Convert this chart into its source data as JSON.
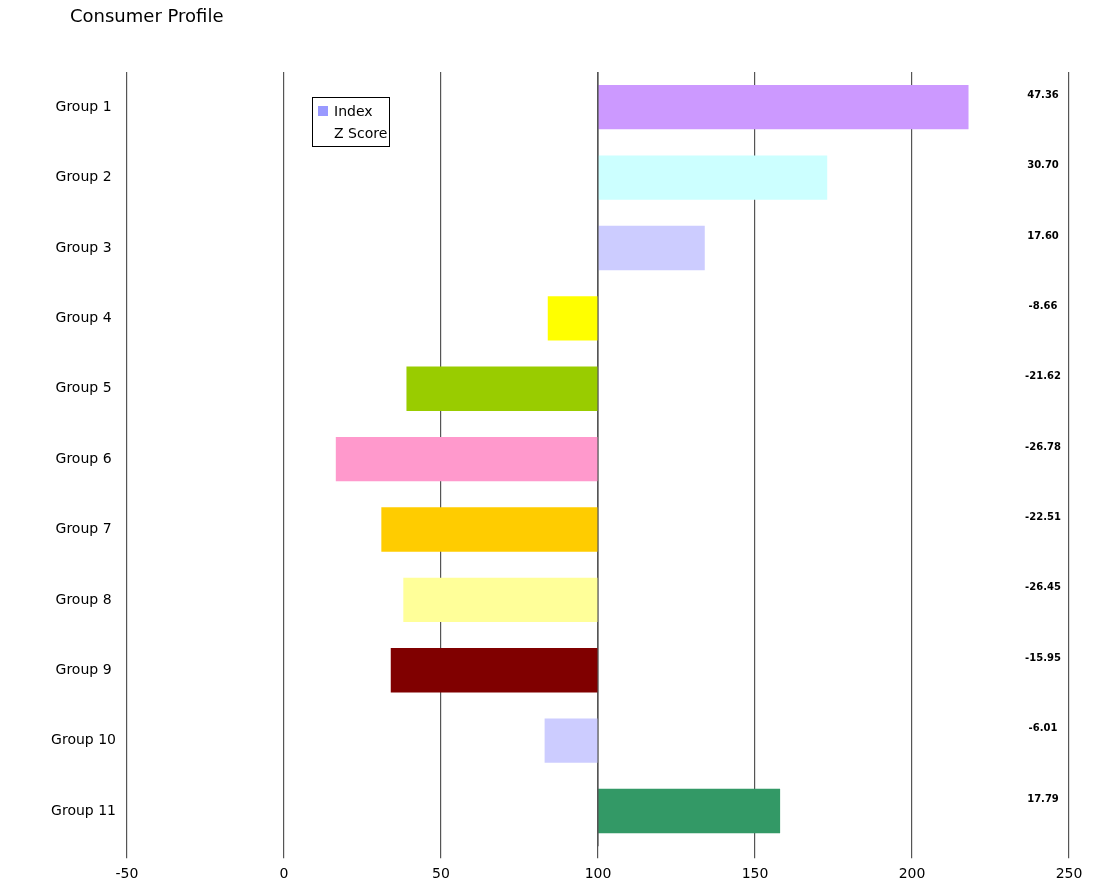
{
  "chart_data": {
    "type": "bar",
    "orientation": "horizontal",
    "title": "Consumer Profile",
    "categories": [
      "Group 1",
      "Group 2",
      "Group 3",
      "Group 4",
      "Group 5",
      "Group 6",
      "Group 7",
      "Group 8",
      "Group 9",
      "Group 10",
      "Group 11"
    ],
    "series": [
      {
        "name": "Index",
        "color": "#9999ff",
        "colors": [
          "#cc99ff",
          "#ccffff",
          "#ccccff",
          "#ffff00",
          "#99cc00",
          "#ff99cc",
          "#ffcc00",
          "#ffff99",
          "#800000",
          "#ccccff",
          "#339966"
        ],
        "base": [
          100,
          100,
          100,
          100,
          100,
          100,
          100,
          100,
          100,
          100,
          100
        ],
        "values": [
          118,
          73,
          34,
          -16,
          -61,
          -83.5,
          -69,
          -62,
          -66,
          -17,
          58
        ]
      },
      {
        "name": "Z Score",
        "values": [
          null,
          null,
          null,
          null,
          null,
          null,
          null,
          null,
          null,
          null,
          null
        ],
        "value_labels": [
          "47.36",
          "30.70",
          "17.60",
          "-8.66",
          "-21.62",
          "-26.78",
          "-22.51",
          "-26.45",
          "-15.95",
          "-6.01",
          "17.79"
        ]
      }
    ],
    "xlim": [
      -50,
      250
    ],
    "xticks": [
      -50,
      0,
      50,
      100,
      150,
      200,
      250
    ],
    "grid": "x",
    "legend": "top left"
  }
}
